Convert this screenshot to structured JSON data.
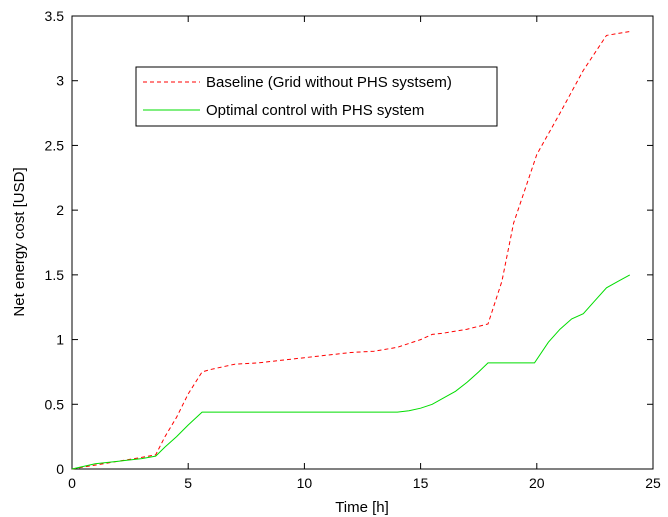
{
  "chart_data": {
    "type": "line",
    "title": "",
    "xlabel": "Time [h]",
    "ylabel": "Net energy cost [USD]",
    "xlim": [
      0,
      25
    ],
    "ylim": [
      0,
      3.5
    ],
    "xticks": [
      0,
      5,
      10,
      15,
      20,
      25
    ],
    "yticks": [
      0,
      0.5,
      1,
      1.5,
      2,
      2.5,
      3,
      3.5
    ],
    "xtick_labels": [
      "0",
      "5",
      "10",
      "15",
      "20",
      "25"
    ],
    "ytick_labels": [
      "0",
      "0.5",
      "1",
      "1.5",
      "2",
      "2.5",
      "3",
      "3.5"
    ],
    "grid": false,
    "legend_position": "top-left",
    "series": [
      {
        "name": "Baseline (Grid without PHS systsem)",
        "color": "#ff0000",
        "style": "dashed",
        "x": [
          0,
          1,
          2,
          3,
          3.6,
          4,
          4.5,
          5,
          5.6,
          6,
          7,
          8,
          9,
          10,
          11,
          12,
          13,
          14,
          15,
          15.5,
          16,
          17,
          17.9,
          18.5,
          19,
          20,
          21,
          22,
          23,
          24
        ],
        "y": [
          0,
          0.03,
          0.06,
          0.09,
          0.11,
          0.25,
          0.4,
          0.58,
          0.75,
          0.77,
          0.81,
          0.82,
          0.84,
          0.86,
          0.88,
          0.9,
          0.91,
          0.94,
          1.0,
          1.04,
          1.05,
          1.08,
          1.12,
          1.45,
          1.9,
          2.43,
          2.75,
          3.08,
          3.35,
          3.38
        ]
      },
      {
        "name": "Optimal control with PHS system",
        "color": "#00dd00",
        "style": "solid",
        "x": [
          0,
          1,
          2,
          3,
          3.6,
          4,
          4.5,
          5,
          5.6,
          6,
          7,
          8,
          9,
          10,
          11,
          12,
          13,
          14,
          14.5,
          15,
          15.5,
          16,
          16.5,
          17,
          17.5,
          17.9,
          18.5,
          19,
          19.9,
          20.5,
          21,
          21.5,
          22,
          22.5,
          23,
          23.5,
          24
        ],
        "y": [
          0,
          0.04,
          0.06,
          0.08,
          0.1,
          0.17,
          0.25,
          0.34,
          0.44,
          0.44,
          0.44,
          0.44,
          0.44,
          0.44,
          0.44,
          0.44,
          0.44,
          0.44,
          0.45,
          0.47,
          0.5,
          0.55,
          0.6,
          0.67,
          0.75,
          0.82,
          0.82,
          0.82,
          0.82,
          0.98,
          1.08,
          1.16,
          1.2,
          1.3,
          1.4,
          1.45,
          1.5
        ]
      }
    ]
  }
}
